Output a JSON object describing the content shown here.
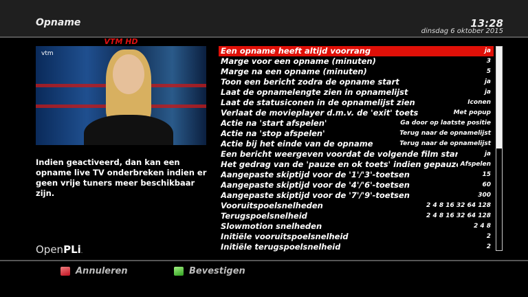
{
  "header": {
    "title": "Opname",
    "time": "13:28",
    "date": "dinsdag  6 oktober 2015"
  },
  "preview": {
    "channel": "VTM HD",
    "logo": "vtm"
  },
  "description": "Indien geactiveerd, dan kan een opname live TV onderbreken indien er geen vrije tuners meer beschikbaar zijn.",
  "brand": {
    "text_light": "Open",
    "text_bold": "PLi",
    "suffix": "."
  },
  "settings": [
    {
      "label": "Een opname heeft altijd voorrang",
      "value": "ja",
      "selected": true
    },
    {
      "label": "Marge voor een opname (minuten)",
      "value": "3"
    },
    {
      "label": "Marge na een opname (minuten)",
      "value": "5"
    },
    {
      "label": "Toon een bericht zodra de opname start",
      "value": "ja"
    },
    {
      "label": "Laat de opnamelengte zien in opnamelijst",
      "value": "ja"
    },
    {
      "label": "Laat de statusiconen in de opnamelijst zien",
      "value": "Iconen"
    },
    {
      "label": "Verlaat de movieplayer d.m.v. de 'exit' toets",
      "value": "Met popup"
    },
    {
      "label": "Actie na 'start afspelen'",
      "value": "Ga door op laatste positie"
    },
    {
      "label": "Actie na 'stop afspelen'",
      "value": "Terug naar de opnamelijst"
    },
    {
      "label": "Actie bij het einde van de opname",
      "value": "Terug naar de opnamelijst"
    },
    {
      "label": "Een bericht weergeven voordat de volgende film start",
      "value": "ja"
    },
    {
      "label": "Het gedrag van de 'pauze en ok toets' indien gepauzeerd",
      "value": "Afspelen"
    },
    {
      "label": "Aangepaste skiptijd voor de '1'/'3'-toetsen",
      "value": "15"
    },
    {
      "label": "Aangepaste skiptijd voor de '4'/'6'-toetsen",
      "value": "60"
    },
    {
      "label": "Aangepaste skiptijd voor de '7'/'9'-toetsen",
      "value": "300"
    },
    {
      "label": "Vooruitspoelsnelheden",
      "value": "2 4 8 16 32 64 128"
    },
    {
      "label": "Terugspoelsnelheid",
      "value": "2 4 8 16 32 64 128"
    },
    {
      "label": "Slowmotion snelheden",
      "value": "2 4 8"
    },
    {
      "label": "Initiële vooruitspoelsnelheid",
      "value": "2"
    },
    {
      "label": "Initiële terugspoelsnelheid",
      "value": "2"
    }
  ],
  "scroll": {
    "visible_fraction": 0.5,
    "position": 0
  },
  "footer": {
    "cancel": "Annuleren",
    "confirm": "Bevestigen",
    "cancel_color": "#d0202a",
    "confirm_color": "#40b030"
  },
  "colors": {
    "selection": "#e01008",
    "channel": "#e01010"
  }
}
